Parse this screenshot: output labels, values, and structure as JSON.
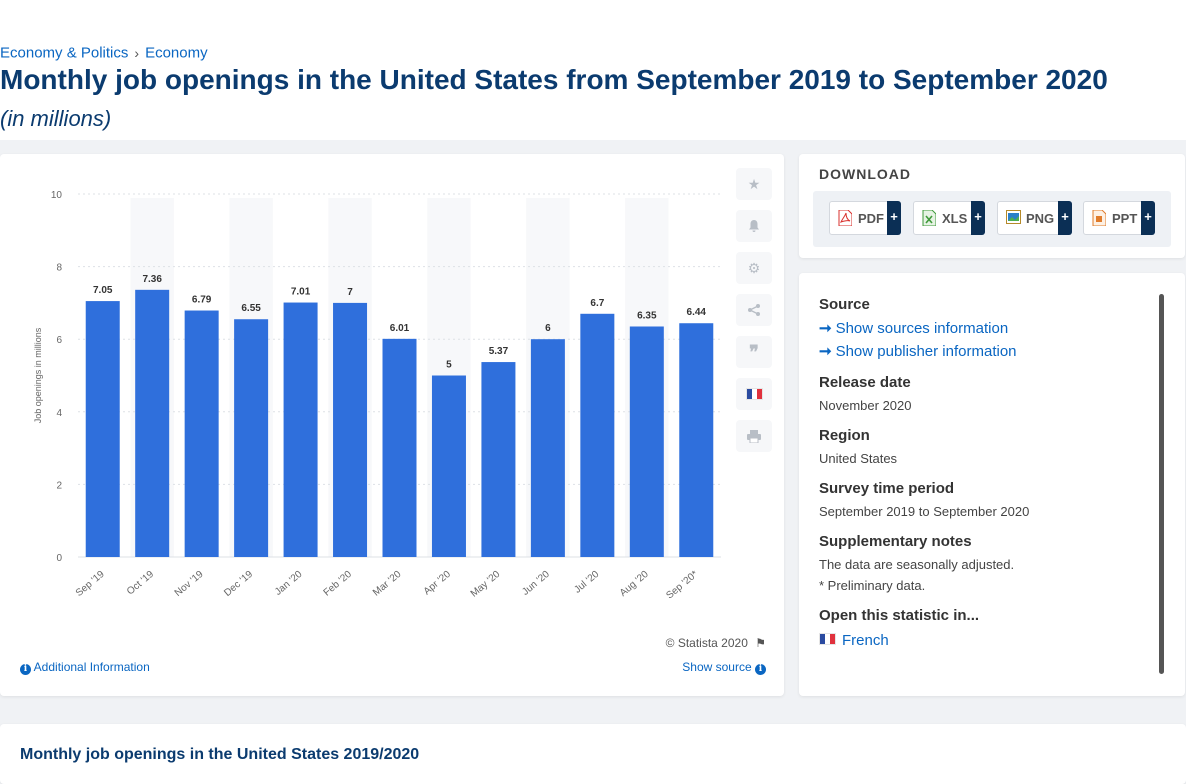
{
  "breadcrumb": {
    "item1": "Economy & Politics",
    "sep": "›",
    "item2": "Economy"
  },
  "page": {
    "title": "Monthly job openings in the United States from September 2019 to September 2020",
    "subtitle": "(in millions)"
  },
  "chart_data": {
    "type": "bar",
    "categories": [
      "Sep '19",
      "Oct '19",
      "Nov '19",
      "Dec '19",
      "Jan '20",
      "Feb '20",
      "Mar '20",
      "Apr '20",
      "May '20",
      "Jun '20",
      "Jul '20",
      "Aug '20",
      "Sep '20*"
    ],
    "values": [
      7.05,
      7.36,
      6.79,
      6.55,
      7.01,
      7,
      6.01,
      5,
      5.37,
      6,
      6.7,
      6.35,
      6.44
    ],
    "value_labels": [
      "7.05",
      "7.36",
      "6.79",
      "6.55",
      "7.01",
      "7",
      "6.01",
      "5",
      "5.37",
      "6",
      "6.7",
      "6.35",
      "6.44"
    ],
    "ylabel": "Job openings in millions",
    "ylim": [
      0,
      10
    ],
    "yticks": [
      "0",
      "2",
      "4",
      "6",
      "8",
      "10"
    ],
    "grid": true,
    "bar_color": "#2f6fdc"
  },
  "chart_footer": {
    "copyright": "© Statista 2020",
    "additional_info": "Additional Information",
    "show_source": "Show source"
  },
  "download": {
    "title": "DOWNLOAD",
    "buttons": [
      {
        "label": "PDF",
        "icon": "pdf-icon",
        "color": "#d9302c"
      },
      {
        "label": "XLS",
        "icon": "xls-icon",
        "color": "#3f9a3a"
      },
      {
        "label": "PNG",
        "icon": "png-icon",
        "color": "#2a7fc9"
      },
      {
        "label": "PPT",
        "icon": "ppt-icon",
        "color": "#e07b2a"
      }
    ],
    "plus": "+"
  },
  "info": {
    "source_head": "Source",
    "show_sources": "Show sources information",
    "show_publisher": "Show publisher information",
    "release_head": "Release date",
    "release_val": "November 2020",
    "region_head": "Region",
    "region_val": "United States",
    "survey_head": "Survey time period",
    "survey_val": "September 2019 to September 2020",
    "notes_head": "Supplementary notes",
    "notes_line1": "The data are seasonally adjusted.",
    "notes_line2": "* Preliminary data.",
    "open_head": "Open this statistic in...",
    "open_lang": "French"
  },
  "bottom": {
    "title": "Monthly job openings in the United States 2019/2020"
  }
}
